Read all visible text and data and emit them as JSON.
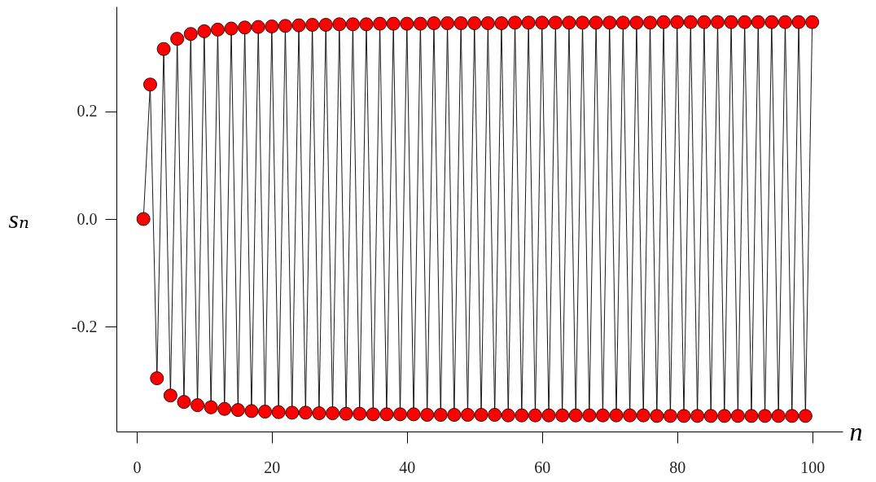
{
  "chart_data": {
    "type": "line",
    "xlabel": "n",
    "ylabel": "sₙ",
    "marker": "circle",
    "x": [
      1,
      2,
      3,
      4,
      5,
      6,
      7,
      8,
      9,
      10,
      11,
      12,
      13,
      14,
      15,
      16,
      17,
      18,
      19,
      20,
      21,
      22,
      23,
      24,
      25,
      26,
      27,
      28,
      29,
      30,
      31,
      32,
      33,
      34,
      35,
      36,
      37,
      38,
      39,
      40,
      41,
      42,
      43,
      44,
      45,
      46,
      47,
      48,
      49,
      50,
      51,
      52,
      53,
      54,
      55,
      56,
      57,
      58,
      59,
      60,
      61,
      62,
      63,
      64,
      65,
      66,
      67,
      68,
      69,
      70,
      71,
      72,
      73,
      74,
      75,
      76,
      77,
      78,
      79,
      80,
      81,
      82,
      83,
      84,
      85,
      86,
      87,
      88,
      89,
      90,
      91,
      92,
      93,
      94,
      95,
      96,
      97,
      98,
      99,
      100
    ],
    "series": [
      {
        "color": "#ff0000",
        "values": [
          0,
          0.25,
          -0.296,
          0.316,
          -0.328,
          0.335,
          -0.34,
          0.344,
          -0.346,
          0.349,
          -0.35,
          0.352,
          -0.353,
          0.354,
          -0.355,
          0.356,
          -0.357,
          0.357,
          -0.358,
          0.358,
          -0.359,
          0.359,
          -0.36,
          0.36,
          -0.36,
          0.361,
          -0.361,
          0.361,
          -0.361,
          0.362,
          -0.362,
          0.362,
          -0.362,
          0.362,
          -0.363,
          0.363,
          -0.363,
          0.363,
          -0.363,
          0.363,
          -0.363,
          0.363,
          -0.364,
          0.364,
          -0.364,
          0.364,
          -0.364,
          0.364,
          -0.364,
          0.364,
          -0.364,
          0.364,
          -0.364,
          0.364,
          -0.365,
          0.365,
          -0.365,
          0.365,
          -0.365,
          0.365,
          -0.365,
          0.365,
          -0.365,
          0.365,
          -0.365,
          0.365,
          -0.365,
          0.365,
          -0.365,
          0.365,
          -0.365,
          0.365,
          -0.365,
          0.365,
          -0.365,
          0.365,
          -0.366,
          0.366,
          -0.366,
          0.366,
          -0.366,
          0.366,
          -0.366,
          0.366,
          -0.366,
          0.366,
          -0.366,
          0.366,
          -0.366,
          0.366,
          -0.366,
          0.366,
          -0.366,
          0.366,
          -0.366,
          0.366,
          -0.366,
          0.366,
          -0.366,
          0.366
        ]
      }
    ],
    "xlim": [
      -3,
      104.5
    ],
    "ylim": [
      -0.395,
      0.395
    ],
    "xticks": [
      0,
      20,
      40,
      60,
      80,
      100
    ],
    "yticks": [
      {
        "value": -0.2,
        "label": "-0.2"
      },
      {
        "value": 0,
        "label": "0.0"
      },
      {
        "value": 0.2,
        "label": "0.2"
      }
    ]
  }
}
